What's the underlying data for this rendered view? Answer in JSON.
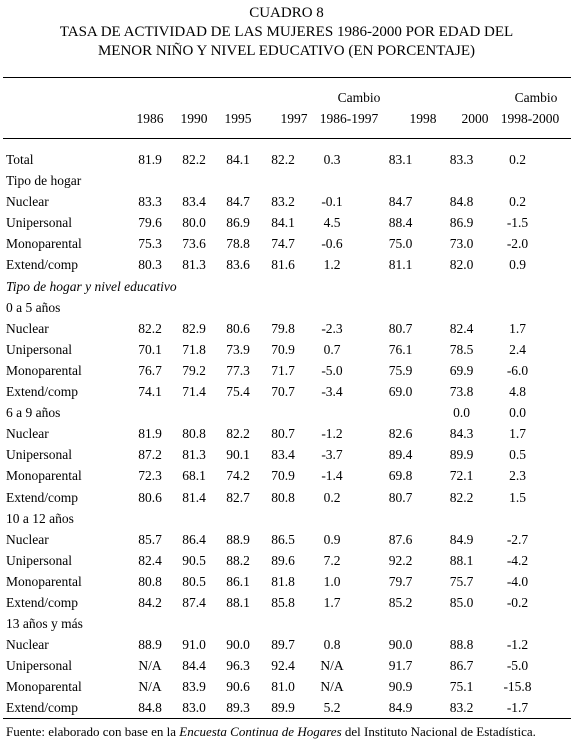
{
  "title": {
    "line1": "CUADRO 8",
    "line2": "TASA DE ACTIVIDAD DE LAS MUJERES 1986-2000 POR EDAD DEL",
    "line3": "MENOR NIÑO Y NIVEL EDUCATIVO (EN PORCENTAJE)"
  },
  "header": {
    "c1986": "1986",
    "c1990": "1990",
    "c1995": "1995",
    "c1997": "1997",
    "cambio1_top": "Cambio",
    "cambio1_bottom": "1986-1997",
    "c1998": "1998",
    "c2000": "2000",
    "cambio2_top": "Cambio",
    "cambio2_bottom": "1998-2000"
  },
  "rows": [
    {
      "label": "Total",
      "v": [
        "81.9",
        "82.2",
        "84.1",
        "82.2",
        "0.3",
        "83.1",
        "83.3",
        "0.2"
      ]
    },
    {
      "label": "Tipo de hogar",
      "section": true
    },
    {
      "label": "Nuclear",
      "v": [
        "83.3",
        "83.4",
        "84.7",
        "83.2",
        "-0.1",
        "84.7",
        "84.8",
        "0.2"
      ]
    },
    {
      "label": "Unipersonal",
      "v": [
        "79.6",
        "80.0",
        "86.9",
        "84.1",
        "4.5",
        "88.4",
        "86.9",
        "-1.5"
      ]
    },
    {
      "label": "Monoparental",
      "v": [
        "75.3",
        "73.6",
        "78.8",
        "74.7",
        "-0.6",
        "75.0",
        "73.0",
        "-2.0"
      ]
    },
    {
      "label": "Extend/comp",
      "v": [
        "80.3",
        "81.3",
        "83.6",
        "81.6",
        "1.2",
        "81.1",
        "82.0",
        "0.9"
      ]
    },
    {
      "label": "Tipo de hogar y nivel educativo",
      "section": true,
      "italic": true
    },
    {
      "label": "0 a 5 años",
      "section": true
    },
    {
      "label": "Nuclear",
      "v": [
        "82.2",
        "82.9",
        "80.6",
        "79.8",
        "-2.3",
        "80.7",
        "82.4",
        "1.7"
      ]
    },
    {
      "label": "Unipersonal",
      "v": [
        "70.1",
        "71.8",
        "73.9",
        "70.9",
        "0.7",
        "76.1",
        "78.5",
        "2.4"
      ]
    },
    {
      "label": "Monoparental",
      "v": [
        "76.7",
        "79.2",
        "77.3",
        "71.7",
        "-5.0",
        "75.9",
        "69.9",
        "-6.0"
      ]
    },
    {
      "label": "Extend/comp",
      "v": [
        "74.1",
        "71.4",
        "75.4",
        "70.7",
        "-3.4",
        "69.0",
        "73.8",
        "4.8"
      ]
    },
    {
      "label": "6 a 9 años",
      "v": [
        "",
        "",
        "",
        "",
        "",
        "",
        "0.0",
        "0.0"
      ]
    },
    {
      "label": "Nuclear",
      "v": [
        "81.9",
        "80.8",
        "82.2",
        "80.7",
        "-1.2",
        "82.6",
        "84.3",
        "1.7"
      ]
    },
    {
      "label": "Unipersonal",
      "v": [
        "87.2",
        "81.3",
        "90.1",
        "83.4",
        "-3.7",
        "89.4",
        "89.9",
        "0.5"
      ]
    },
    {
      "label": "Monoparental",
      "v": [
        "72.3",
        "68.1",
        "74.2",
        "70.9",
        "-1.4",
        "69.8",
        "72.1",
        "2.3"
      ]
    },
    {
      "label": "Extend/comp",
      "v": [
        "80.6",
        "81.4",
        "82.7",
        "80.8",
        "0.2",
        "80.7",
        "82.2",
        "1.5"
      ]
    },
    {
      "label": "10 a 12 años",
      "section": true
    },
    {
      "label": "Nuclear",
      "v": [
        "85.7",
        "86.4",
        "88.9",
        "86.5",
        "0.9",
        "87.6",
        "84.9",
        "-2.7"
      ]
    },
    {
      "label": "Unipersonal",
      "v": [
        "82.4",
        "90.5",
        "88.2",
        "89.6",
        "7.2",
        "92.2",
        "88.1",
        "-4.2"
      ]
    },
    {
      "label": "Monoparental",
      "v": [
        "80.8",
        "80.5",
        "86.1",
        "81.8",
        "1.0",
        "79.7",
        "75.7",
        "-4.0"
      ]
    },
    {
      "label": "Extend/comp",
      "v": [
        "84.2",
        "87.4",
        "88.1",
        "85.8",
        "1.7",
        "85.2",
        "85.0",
        "-0.2"
      ]
    },
    {
      "label": "13 años y más",
      "section": true
    },
    {
      "label": "Nuclear",
      "v": [
        "88.9",
        "91.0",
        "90.0",
        "89.7",
        "0.8",
        "90.0",
        "88.8",
        "-1.2"
      ]
    },
    {
      "label": "Unipersonal",
      "v": [
        "N/A",
        "84.4",
        "96.3",
        "92.4",
        "N/A",
        "91.7",
        "86.7",
        "-5.0"
      ]
    },
    {
      "label": "Monoparental",
      "v": [
        "N/A",
        "83.9",
        "90.6",
        "81.0",
        "N/A",
        "90.9",
        "75.1",
        "-15.8"
      ]
    },
    {
      "label": "Extend/comp",
      "v": [
        "84.8",
        "83.0",
        "89.3",
        "89.9",
        "5.2",
        "84.9",
        "83.2",
        "-1.7"
      ]
    }
  ],
  "footnote": {
    "prefix": "Fuente: elaborado con base en la ",
    "italic": "Encuesta Continua de Hogares",
    "suffix": " del Instituto Nacional de Estadística."
  }
}
